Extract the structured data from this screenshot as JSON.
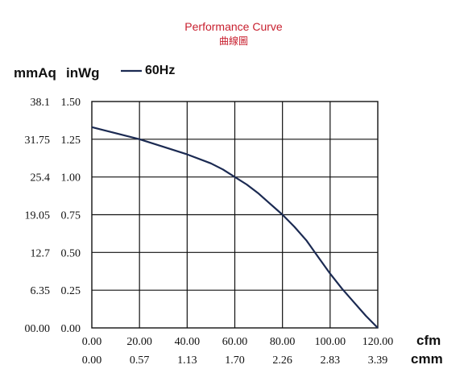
{
  "chart_data": {
    "type": "line",
    "title": "Performance Curve",
    "subtitle": "曲線圖",
    "y_units": [
      "mmAq",
      "inWg"
    ],
    "x_units": [
      "cfm",
      "cmm"
    ],
    "legend": {
      "entries": [
        "60Hz"
      ],
      "placement": "top-left"
    },
    "grid": true,
    "xlim": [
      0,
      120
    ],
    "ylim": [
      0,
      1.5
    ],
    "x_ticks_cfm": [
      "0.00",
      "20.00",
      "40.00",
      "60.00",
      "80.00",
      "100.00",
      "120.00"
    ],
    "x_ticks_cmm": [
      "0.00",
      "0.57",
      "1.13",
      "1.70",
      "2.26",
      "2.83",
      "3.39"
    ],
    "y_ticks_inwg": [
      "0.00",
      "0.25",
      "0.50",
      "0.75",
      "1.00",
      "1.25",
      "1.50"
    ],
    "y_ticks_mmaq": [
      "00.00",
      "6.35",
      "12.7",
      "19.05",
      "25.4",
      "31.75",
      "38.1"
    ],
    "series": [
      {
        "name": "60Hz",
        "color": "#1b2a52",
        "x": [
          0,
          10,
          20,
          30,
          40,
          50,
          55,
          60,
          65,
          70,
          75,
          80,
          85,
          90,
          95,
          100,
          105,
          110,
          115,
          120
        ],
        "y": [
          1.33,
          1.29,
          1.25,
          1.2,
          1.15,
          1.09,
          1.05,
          1.0,
          0.95,
          0.89,
          0.82,
          0.75,
          0.67,
          0.58,
          0.47,
          0.36,
          0.26,
          0.17,
          0.08,
          0.0
        ]
      }
    ]
  }
}
